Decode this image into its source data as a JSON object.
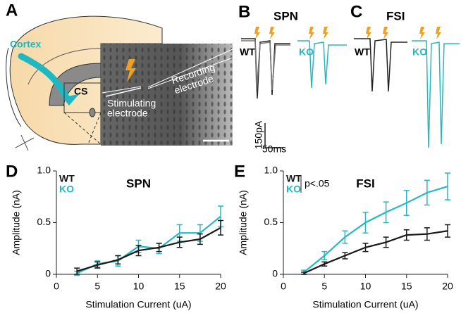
{
  "panels": {
    "A": {
      "letter": "A",
      "cortex": "Cortex",
      "cs": "CS",
      "stim": [
        "Stimulating",
        "electrode"
      ],
      "rec": [
        "Recording",
        "electrode"
      ]
    },
    "B": {
      "letter": "B",
      "title": "SPN",
      "wt": "WT",
      "ko": "KO"
    },
    "C": {
      "letter": "C",
      "title": "FSI",
      "wt": "WT",
      "ko": "KO"
    },
    "scale": {
      "current": "150pA",
      "time": "50ms"
    }
  },
  "chart_data": [
    {
      "type": "line",
      "panel": "D",
      "title": "SPN",
      "xlabel": "Stimulation Current (uA)",
      "ylabel": "Amplitude (nA)",
      "x": [
        2.5,
        5,
        7.5,
        10,
        12.5,
        15,
        17.5,
        20
      ],
      "xlim": [
        0,
        20
      ],
      "xticks": [
        0,
        5,
        10,
        15,
        20
      ],
      "ylim": [
        0,
        1
      ],
      "yticks": [
        0,
        0.5,
        {
          "value": 1,
          "label": "1.0"
        }
      ],
      "series": [
        {
          "name": "WT",
          "color": "#1a1a1a",
          "values": [
            0.03,
            0.09,
            0.14,
            0.23,
            0.26,
            0.31,
            0.34,
            0.45
          ],
          "errors": [
            0.03,
            0.03,
            0.04,
            0.05,
            0.04,
            0.05,
            0.05,
            0.07
          ]
        },
        {
          "name": "KO",
          "color": "#26b8c2",
          "values": [
            0.01,
            0.1,
            0.13,
            0.27,
            0.25,
            0.4,
            0.4,
            0.56
          ],
          "errors": [
            0.02,
            0.03,
            0.05,
            0.06,
            0.05,
            0.08,
            0.08,
            0.1
          ]
        }
      ]
    },
    {
      "type": "line",
      "panel": "E",
      "title": "FSI",
      "xlabel": "Stimulation Current (uA)",
      "ylabel": "Amplitude (nA)",
      "annotation": "p<.05",
      "x": [
        2.5,
        5,
        7.5,
        10,
        12.5,
        15,
        17.5,
        20
      ],
      "xlim": [
        0,
        20
      ],
      "xticks": [
        0,
        5,
        10,
        15,
        20
      ],
      "ylim": [
        0,
        1
      ],
      "yticks": [
        0,
        0.5,
        {
          "value": 1,
          "label": "1.0"
        }
      ],
      "series": [
        {
          "name": "WT",
          "color": "#1a1a1a",
          "values": [
            0.01,
            0.1,
            0.18,
            0.26,
            0.31,
            0.38,
            0.39,
            0.42
          ],
          "errors": [
            0.01,
            0.02,
            0.03,
            0.04,
            0.05,
            0.05,
            0.06,
            0.06
          ]
        },
        {
          "name": "KO",
          "color": "#26b8c2",
          "values": [
            0.02,
            0.18,
            0.36,
            0.5,
            0.6,
            0.69,
            0.79,
            0.85
          ],
          "errors": [
            0.02,
            0.04,
            0.06,
            0.1,
            0.1,
            0.12,
            0.12,
            0.13
          ]
        }
      ]
    }
  ]
}
